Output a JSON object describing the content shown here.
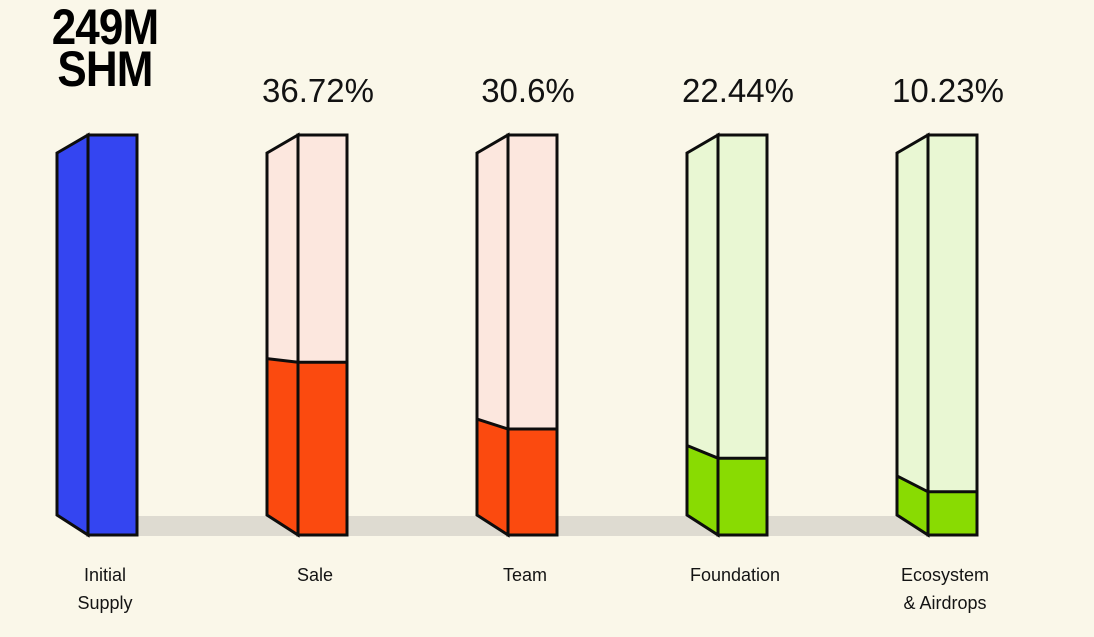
{
  "background_color": "#FAF7E9",
  "shadow_color": "#DEDBD1",
  "outline_color": "#0D0D0D",
  "text_color": "#121212",
  "title": {
    "line1": "249M",
    "line2": "SHM"
  },
  "chart_data": {
    "type": "bar",
    "title": "249M SHM",
    "total_supply_label": "249M SHM",
    "categories": [
      "Initial Supply",
      "Sale",
      "Team",
      "Foundation",
      "Ecosystem & Airdrops"
    ],
    "percent_labels": [
      "",
      "36.72%",
      "30.6%",
      "22.44%",
      "10.23%"
    ],
    "values": [
      100,
      36.72,
      30.6,
      22.44,
      10.23
    ],
    "filled_fraction_of_column_height": [
      1,
      0.432,
      0.265,
      0.192,
      0.108
    ],
    "legend": "none",
    "axes": "none",
    "columns": [
      {
        "id": "initial-supply",
        "category_line1": "Initial",
        "category_line2": "Supply",
        "percent_label": "",
        "base_color": "#3445F1",
        "fill_color": "#3445F1",
        "filled_fraction": 1
      },
      {
        "id": "sale",
        "category_line1": "Sale",
        "category_line2": "",
        "percent_label": "36.72%",
        "base_color": "#FCE7DE",
        "fill_color": "#FB4A0F",
        "filled_fraction": 0.432
      },
      {
        "id": "team",
        "category_line1": "Team",
        "category_line2": "",
        "percent_label": "30.6%",
        "base_color": "#FCE7DE",
        "fill_color": "#FB4A0F",
        "filled_fraction": 0.265
      },
      {
        "id": "foundation",
        "category_line1": "Foundation",
        "category_line2": "",
        "percent_label": "22.44%",
        "base_color": "#E9F7D3",
        "fill_color": "#89DB02",
        "filled_fraction": 0.192
      },
      {
        "id": "ecosystem-airdrops",
        "category_line1": "Ecosystem",
        "category_line2": "& Airdrops",
        "percent_label": "10.23%",
        "base_color": "#E9F7D3",
        "fill_color": "#89DB02",
        "filled_fraction": 0.108
      }
    ]
  }
}
